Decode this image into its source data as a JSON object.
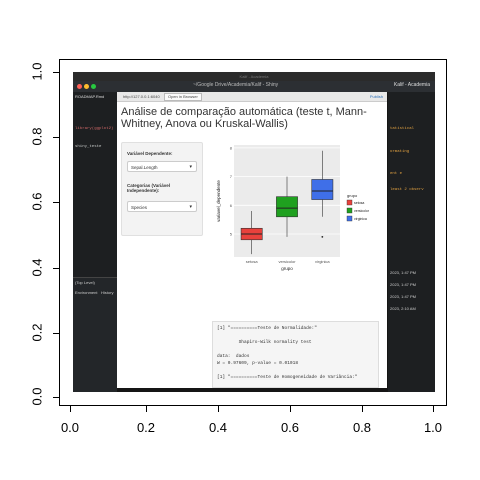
{
  "plot_frame": {
    "x_ticks": [
      "0.0",
      "0.2",
      "0.4",
      "0.6",
      "0.8",
      "1.0"
    ],
    "y_ticks": [
      "0.0",
      "0.2",
      "0.4",
      "0.6",
      "0.8",
      "1.0"
    ]
  },
  "mac": {
    "title": "Kalif - Academia"
  },
  "rstudio": {
    "title": "~/Google Drive/Academia/Kalif - Shiny",
    "right_label": "Kalif - Academia"
  },
  "editor": {
    "tab": "ROADMAP.Rmd",
    "code_lines": [
      "library(ggplot2)",
      "shiny_teste",
      ""
    ],
    "lower_tabs": [
      "Environment",
      "History"
    ],
    "lower_status": "(Top Level)"
  },
  "right_panel": {
    "texts": [
      "tatistical",
      "ormating",
      "ent e",
      "least 2 observ"
    ],
    "dates": [
      "2023, 1:47 PM",
      "2023, 1:47 PM",
      "2023, 1:47 PM",
      "2023, 2:10 AM"
    ]
  },
  "browser": {
    "url": "http://127.0.0.1:6040",
    "open_button": "Open in Browser",
    "publish": "Publish"
  },
  "app": {
    "title": "Análise de comparação automática (teste t, Mann-Whitney, Anova ou Kruskal-Wallis)",
    "dep_label": "Variável Dependente:",
    "dep_value": "Sepal.Length",
    "indep_label": "Categorias (Variável Independente):",
    "indep_value": "Species"
  },
  "console": {
    "lines": [
      "[1] \"==========Teste de Normalidade:\"",
      "",
      "        Shapiro-Wilk normality test",
      "",
      "data:  dados",
      "W = 0.97609, p-value = 0.01018",
      "",
      "[1] \"==========Teste de Homogeneidade de Variância:\""
    ]
  },
  "chart_data": {
    "type": "boxplot",
    "categories": [
      "setosa",
      "versicolor",
      "virginica"
    ],
    "colors": [
      "#e8413c",
      "#1fa01f",
      "#3f6fe8"
    ],
    "boxes": [
      {
        "name": "setosa",
        "min": 4.3,
        "q1": 4.8,
        "median": 5.0,
        "q3": 5.2,
        "max": 5.8,
        "outliers": []
      },
      {
        "name": "versicolor",
        "min": 4.9,
        "q1": 5.6,
        "median": 5.9,
        "q3": 6.3,
        "max": 7.0,
        "outliers": []
      },
      {
        "name": "virginica",
        "min": 5.6,
        "q1": 6.2,
        "median": 6.5,
        "q3": 6.9,
        "max": 7.9,
        "outliers": [
          4.9
        ]
      }
    ],
    "xlabel": "grupo",
    "ylabel": "variavel_dependente",
    "ylim": [
      4.2,
      8.1
    ],
    "yticks": [
      5,
      6,
      7,
      8
    ],
    "legend_title": "grupo",
    "legend": [
      "setosa",
      "versicolor",
      "virginica"
    ]
  }
}
